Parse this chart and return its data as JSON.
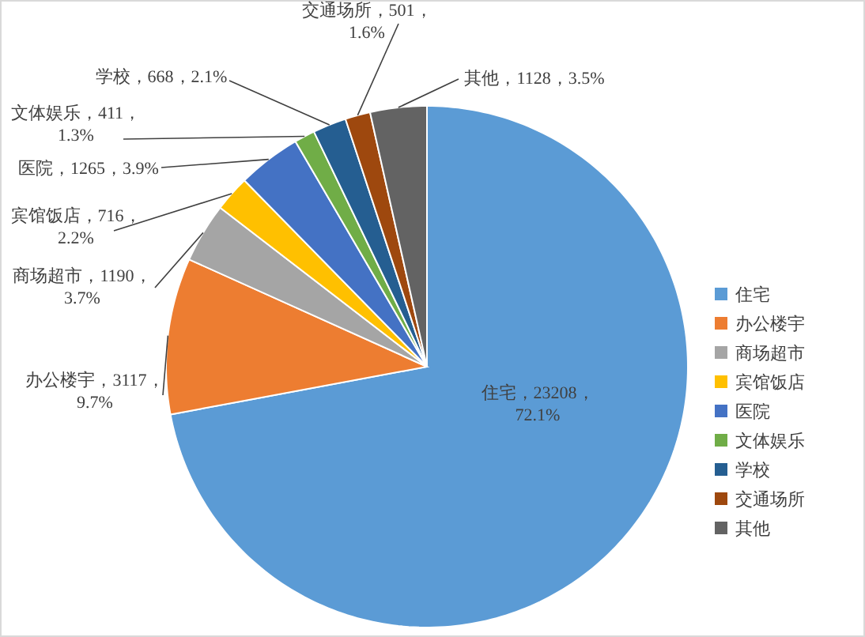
{
  "chart_data": {
    "type": "pie",
    "categories": [
      "住宅",
      "办公楼宇",
      "商场超市",
      "宾馆饭店",
      "医院",
      "文体娱乐",
      "学校",
      "交通场所",
      "其他"
    ],
    "values": [
      23208,
      3117,
      1190,
      716,
      1265,
      411,
      668,
      501,
      1128
    ],
    "colors": [
      "#5b9bd5",
      "#ed7d31",
      "#a5a5a5",
      "#ffc000",
      "#4472c4",
      "#70ad47",
      "#255e91",
      "#9e480e",
      "#636363"
    ],
    "value_labels": [
      "住宅，23208，\n72.1%",
      "办公楼宇，3117，\n9.7%",
      "商场超市，1190，\n3.7%",
      "宾馆饭店，716，\n2.2%",
      "医院，1265，3.9%",
      "文体娱乐，411，\n1.3%",
      "学校，668，2.1%",
      "交通场所，501，\n1.6%",
      "其他，1128，3.5%"
    ],
    "legend": "right"
  }
}
